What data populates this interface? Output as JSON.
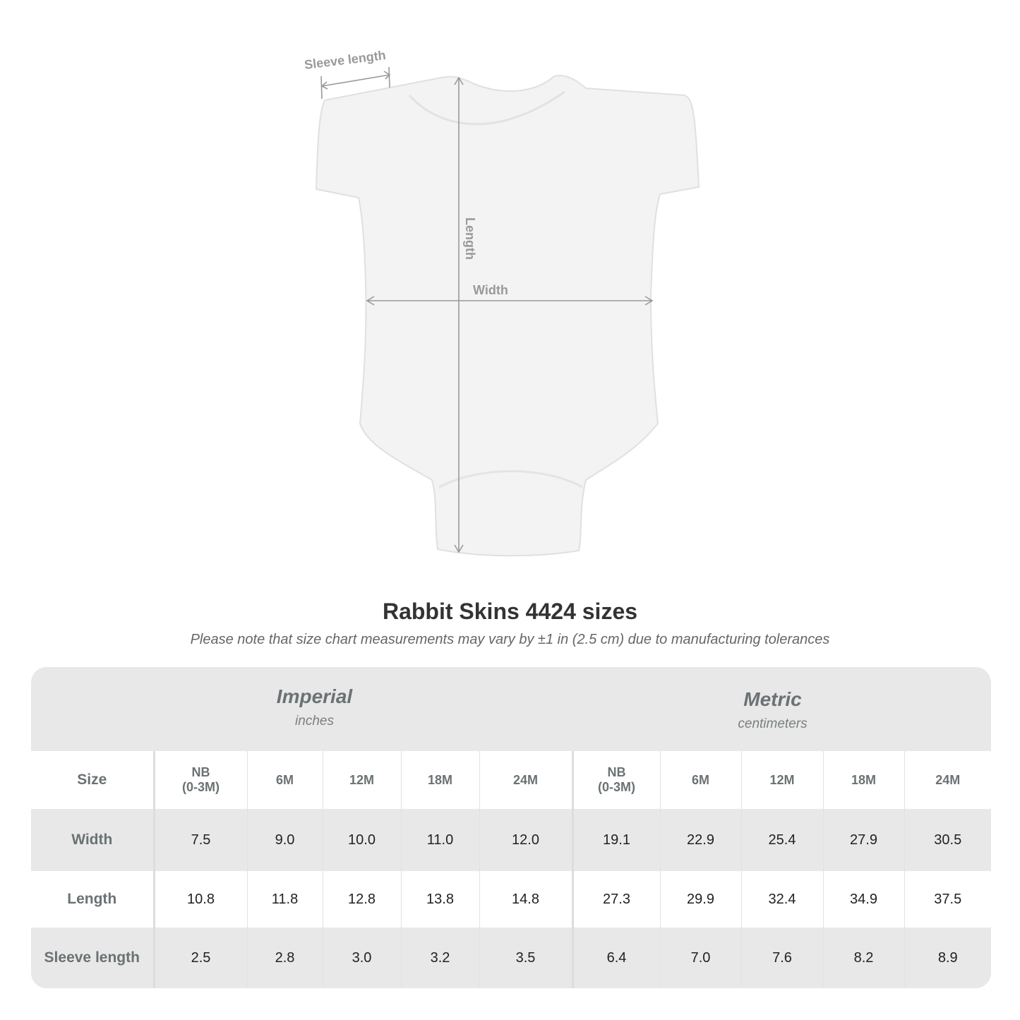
{
  "illustration": {
    "labels": {
      "sleeve": "Sleeve length",
      "length": "Length",
      "width": "Width"
    }
  },
  "title": "Rabbit Skins 4424 sizes",
  "note": "Please note that size chart measurements may vary by ±1 in (2.5 cm) due to manufacturing tolerances",
  "table": {
    "imperial": {
      "name": "Imperial",
      "unit": "inches"
    },
    "metric": {
      "name": "Metric",
      "unit": "centimeters"
    },
    "size_label": "Size",
    "sizes": [
      [
        "NB",
        "(0-3M)"
      ],
      [
        "6M",
        ""
      ],
      [
        "12M",
        ""
      ],
      [
        "18M",
        ""
      ],
      [
        "24M",
        ""
      ]
    ],
    "rows": [
      {
        "label": "Width",
        "imperial": [
          "7.5",
          "9.0",
          "10.0",
          "11.0",
          "12.0"
        ],
        "metric": [
          "19.1",
          "22.9",
          "25.4",
          "27.9",
          "30.5"
        ]
      },
      {
        "label": "Length",
        "imperial": [
          "10.8",
          "11.8",
          "12.8",
          "13.8",
          "14.8"
        ],
        "metric": [
          "27.3",
          "29.9",
          "32.4",
          "34.9",
          "37.5"
        ]
      },
      {
        "label": "Sleeve length",
        "imperial": [
          "2.5",
          "2.8",
          "3.0",
          "3.2",
          "3.5"
        ],
        "metric": [
          "6.4",
          "7.0",
          "7.6",
          "8.2",
          "8.9"
        ]
      }
    ]
  }
}
